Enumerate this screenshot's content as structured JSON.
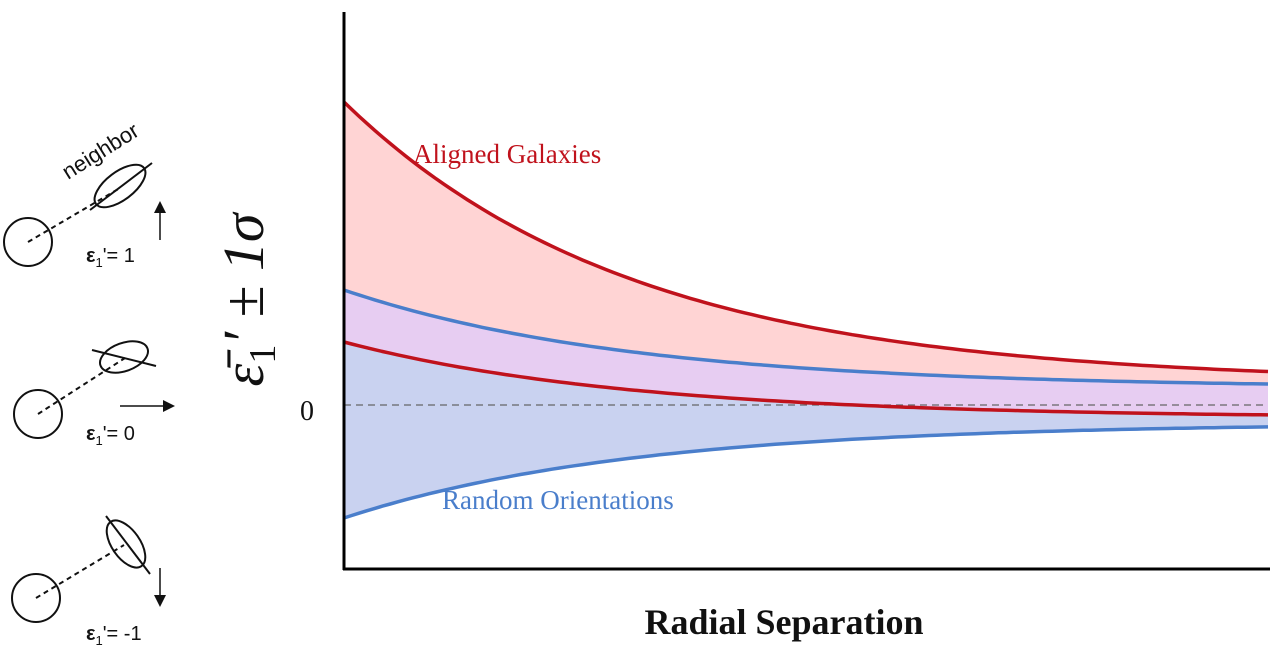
{
  "figure": {
    "ylabel": {
      "main": "ε̄",
      "sub": "1",
      "rest": "′ ± 1σ"
    },
    "xlabel": "Radial Separation",
    "zero_tick": "0",
    "aligned_label": "Aligned Galaxies",
    "random_label": "Random Orientations",
    "colors": {
      "aligned": "#c0121c",
      "aligned_fill": "#ffd4d4",
      "random": "#4a7ecb",
      "random_fill": "#c9d2f0",
      "overlap_fill": "#e7cdf2"
    }
  },
  "legend": {
    "neighbor_label": "neighbor",
    "cases": [
      {
        "symbol": "ε",
        "sub": "1",
        "value": "'= 1"
      },
      {
        "symbol": "ε",
        "sub": "1",
        "value": "'= 0"
      },
      {
        "symbol": "ε",
        "sub": "1",
        "value": "'= -1"
      }
    ]
  }
}
